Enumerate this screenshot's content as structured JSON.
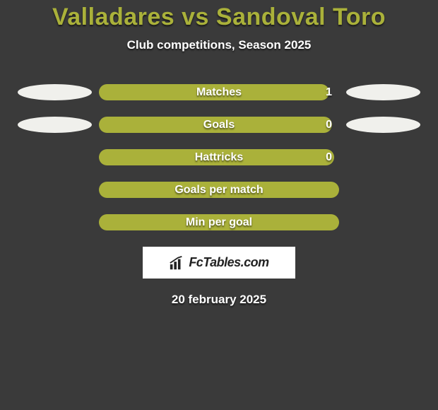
{
  "title": "Valladares vs Sandoval Toro",
  "subtitle": "Club competitions, Season 2025",
  "date": "20 february 2025",
  "logo": {
    "text": "FcTables.com"
  },
  "colors": {
    "accent": "#aab13a",
    "bg": "#3a3a3a",
    "ellipse": "#f0f0ec",
    "logo_bg": "#ffffff",
    "text": "#ffffff"
  },
  "rows": [
    {
      "label": "Matches",
      "value": "1",
      "fill_pct": 96,
      "show_ellipses": true,
      "show_value": true
    },
    {
      "label": "Goals",
      "value": "0",
      "fill_pct": 97,
      "show_ellipses": true,
      "show_value": true
    },
    {
      "label": "Hattricks",
      "value": "0",
      "fill_pct": 98,
      "show_ellipses": false,
      "show_value": true
    },
    {
      "label": "Goals per match",
      "value": "",
      "fill_pct": 100,
      "show_ellipses": false,
      "show_value": false
    },
    {
      "label": "Min per goal",
      "value": "",
      "fill_pct": 100,
      "show_ellipses": false,
      "show_value": false
    }
  ]
}
